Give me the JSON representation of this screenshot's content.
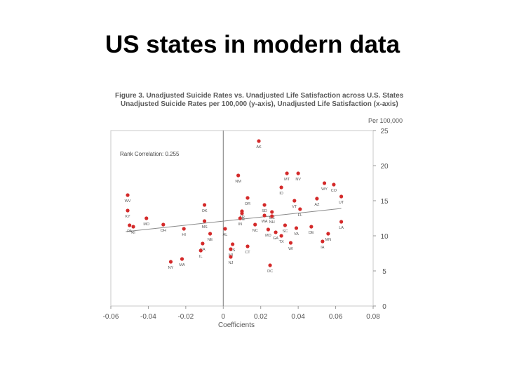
{
  "slide": {
    "title": "US states in modern data"
  },
  "chart_data": {
    "type": "scatter",
    "title": "Figure 3.  Unadjusted Suicide Rates vs. Unadjusted Life Satisfaction across U.S. States",
    "subtitle": "Unadjusted Suicide Rates per 100,000 (y-axis), Unadjusted Life Satisfaction (x-axis)",
    "xlabel": "Coefficients",
    "ylabel": "Per 100,000",
    "xlim": [
      -0.06,
      0.08
    ],
    "ylim": [
      0,
      25
    ],
    "x_ticks": [
      "-0.06",
      "-0.04",
      "-0.02",
      "0",
      "0.02",
      "0.04",
      "0.06",
      "0.08"
    ],
    "y_ticks": [
      "0",
      "5",
      "10",
      "15",
      "20",
      "25"
    ],
    "annotation": "Rank Correlation: 0.255",
    "grid": false,
    "trendline": {
      "x": [
        -0.052,
        0.063
      ],
      "y": [
        10.6,
        13.9
      ]
    },
    "point_color": "#d42a2a",
    "points": [
      {
        "label": "AK",
        "x": 0.019,
        "y": 23.5
      },
      {
        "label": "NM",
        "x": 0.008,
        "y": 18.6
      },
      {
        "label": "MT",
        "x": 0.034,
        "y": 18.9
      },
      {
        "label": "NV",
        "x": 0.04,
        "y": 18.9
      },
      {
        "label": "WY",
        "x": 0.054,
        "y": 17.5
      },
      {
        "label": "CO",
        "x": 0.059,
        "y": 17.3
      },
      {
        "label": "ID",
        "x": 0.031,
        "y": 16.9
      },
      {
        "label": "WV",
        "x": -0.051,
        "y": 15.8
      },
      {
        "label": "UT",
        "x": 0.063,
        "y": 15.6
      },
      {
        "label": "OR",
        "x": 0.013,
        "y": 15.4
      },
      {
        "label": "AZ",
        "x": 0.05,
        "y": 15.3
      },
      {
        "label": "VT",
        "x": 0.038,
        "y": 15.0
      },
      {
        "label": "OK",
        "x": -0.01,
        "y": 14.4
      },
      {
        "label": "SD",
        "x": 0.022,
        "y": 14.4
      },
      {
        "label": "FL",
        "x": 0.041,
        "y": 13.8
      },
      {
        "label": "KY",
        "x": -0.051,
        "y": 13.6
      },
      {
        "label": "AR",
        "x": 0.01,
        "y": 13.5
      },
      {
        "label": "ME",
        "x": 0.026,
        "y": 13.4
      },
      {
        "label": "TN",
        "x": 0.01,
        "y": 13.2
      },
      {
        "label": "WA",
        "x": 0.022,
        "y": 12.9
      },
      {
        "label": "NH",
        "x": 0.026,
        "y": 12.8
      },
      {
        "label": "MO",
        "x": -0.041,
        "y": 12.5
      },
      {
        "label": "IN",
        "x": 0.009,
        "y": 12.5
      },
      {
        "label": "MS",
        "x": -0.01,
        "y": 12.1
      },
      {
        "label": "LA",
        "x": 0.063,
        "y": 12.0
      },
      {
        "label": "OH",
        "x": -0.032,
        "y": 11.6
      },
      {
        "label": "PA",
        "x": -0.05,
        "y": 11.5
      },
      {
        "label": "RI",
        "x": -0.048,
        "y": 11.3
      },
      {
        "label": "NC",
        "x": 0.017,
        "y": 11.6
      },
      {
        "label": "SC",
        "x": 0.033,
        "y": 11.5
      },
      {
        "label": "DE",
        "x": 0.047,
        "y": 11.3
      },
      {
        "label": "VA",
        "x": 0.039,
        "y": 11.1
      },
      {
        "label": "HI",
        "x": -0.021,
        "y": 11.0
      },
      {
        "label": "AL",
        "x": 0.001,
        "y": 11.0
      },
      {
        "label": "MD",
        "x": 0.024,
        "y": 10.9
      },
      {
        "label": "GA",
        "x": 0.028,
        "y": 10.5
      },
      {
        "label": "NE",
        "x": -0.007,
        "y": 10.3
      },
      {
        "label": "MN",
        "x": 0.056,
        "y": 10.3
      },
      {
        "label": "TX",
        "x": 0.031,
        "y": 10.0
      },
      {
        "label": "IA",
        "x": 0.053,
        "y": 9.2
      },
      {
        "label": "WI",
        "x": 0.036,
        "y": 9.0
      },
      {
        "label": "CA",
        "x": -0.011,
        "y": 8.9
      },
      {
        "label": "KS",
        "x": 0.005,
        "y": 8.8
      },
      {
        "label": "CT",
        "x": 0.013,
        "y": 8.5
      },
      {
        "label": "MI",
        "x": 0.004,
        "y": 8.1
      },
      {
        "label": "IL",
        "x": -0.012,
        "y": 7.9
      },
      {
        "label": "NJ",
        "x": 0.004,
        "y": 7.0
      },
      {
        "label": "NY",
        "x": -0.028,
        "y": 6.3
      },
      {
        "label": "MA",
        "x": -0.022,
        "y": 6.7
      },
      {
        "label": "DC",
        "x": 0.025,
        "y": 5.8
      }
    ]
  }
}
